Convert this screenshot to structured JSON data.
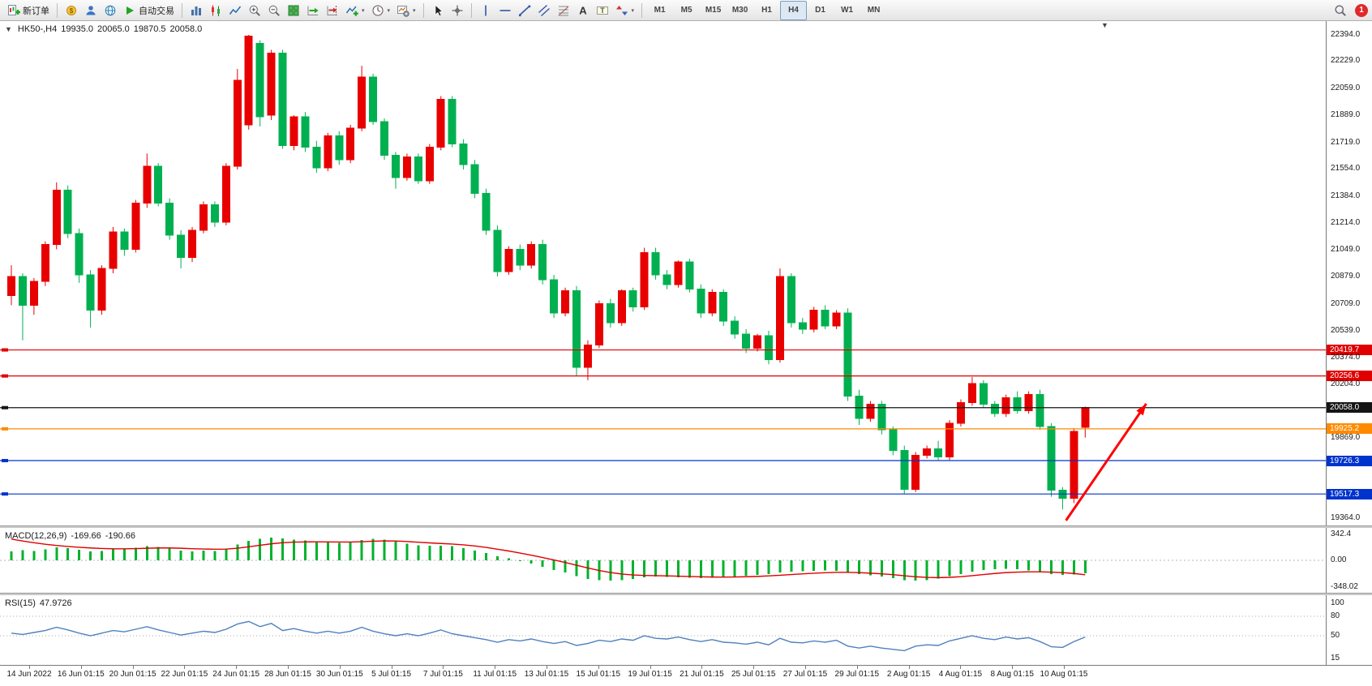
{
  "toolbar": {
    "new_order_label": "新订单",
    "auto_trading_label": "自动交易",
    "timeframes": [
      "M1",
      "M5",
      "M15",
      "M30",
      "H1",
      "H4",
      "D1",
      "W1",
      "MN"
    ],
    "active_timeframe": "H4",
    "notification_badge": "1",
    "items": [
      {
        "icon": "new-order-icon",
        "label": "新订单",
        "name": "new-order-button"
      },
      {
        "sep": true
      },
      {
        "icon": "market-icon",
        "name": "market-button"
      },
      {
        "icon": "community-icon",
        "name": "community-button"
      },
      {
        "icon": "website-icon",
        "name": "website-button"
      },
      {
        "icon": "auto-trading-icon",
        "label": "自动交易",
        "name": "auto-trading-button"
      },
      {
        "sep": true
      },
      {
        "icon": "bar-chart-icon",
        "name": "bar-chart-mode-button"
      },
      {
        "icon": "candlestick-icon",
        "name": "candlestick-mode-button"
      },
      {
        "icon": "line-chart-icon",
        "name": "line-chart-mode-button"
      },
      {
        "icon": "zoom-in-icon",
        "name": "zoom-in-button"
      },
      {
        "icon": "zoom-out-icon",
        "name": "zoom-out-button"
      },
      {
        "icon": "tile-windows-icon",
        "name": "tile-windows-button"
      },
      {
        "icon": "auto-scroll-icon",
        "name": "auto-scroll-button"
      },
      {
        "icon": "chart-shift-icon",
        "name": "chart-shift-button"
      },
      {
        "icon": "indicators-icon",
        "name": "indicators-button",
        "dropdown": true
      },
      {
        "icon": "periods-icon",
        "name": "periods-button",
        "dropdown": true
      },
      {
        "icon": "templates-icon",
        "name": "templates-button",
        "dropdown": true
      },
      {
        "sep": true
      },
      {
        "icon": "cursor-icon",
        "name": "cursor-button"
      },
      {
        "icon": "crosshair-icon",
        "name": "crosshair-button"
      },
      {
        "sep": true
      },
      {
        "icon": "vertical-line-icon",
        "name": "vertical-line-button"
      },
      {
        "icon": "horizontal-line-icon",
        "name": "horizontal-line-button"
      },
      {
        "icon": "trendline-icon",
        "name": "trendline-button"
      },
      {
        "icon": "channel-icon",
        "name": "equidistant-channel-button"
      },
      {
        "icon": "fibonacci-icon",
        "name": "fibonacci-button"
      },
      {
        "icon": "text-icon",
        "name": "text-button"
      },
      {
        "icon": "label-icon",
        "name": "text-label-button"
      },
      {
        "icon": "arrows-icon",
        "name": "arrows-button",
        "dropdown": true
      },
      {
        "sep": true
      }
    ]
  },
  "chart": {
    "symbol_period": "HK50-,H4",
    "open": "19935.0",
    "high": "20065.0",
    "low": "19870.5",
    "close": "20058.0"
  },
  "chart_data": {
    "type": "candlestick",
    "symbol": "HK50-",
    "timeframe": "H4",
    "bull_color": "#e80000",
    "bear_color": "#00b050",
    "view": {
      "price_range": [
        19320,
        22480
      ]
    },
    "price_axis_ticks": [
      "22394.0",
      "22229.0",
      "22059.0",
      "21889.0",
      "21719.0",
      "21554.0",
      "21384.0",
      "21214.0",
      "21049.0",
      "20879.0",
      "20709.0",
      "20539.0",
      "20374.0",
      "20204.0",
      "19869.0",
      "19364.0"
    ],
    "price_levels": [
      {
        "label": "20419.7",
        "color": "#e00000",
        "name": "resistance-line-1"
      },
      {
        "label": "20256.6",
        "color": "#e00000",
        "name": "resistance-line-2"
      },
      {
        "label": "20058.0",
        "color": "#151515",
        "name": "current-price-line"
      },
      {
        "label": "19925.2",
        "color": "#ff8a00",
        "name": "support-line-1"
      },
      {
        "label": "19726.3",
        "color": "#0033cc",
        "name": "support-line-2"
      },
      {
        "label": "19517.3",
        "color": "#0033cc",
        "name": "support-line-3"
      }
    ],
    "candles": [
      [
        20760,
        20950,
        20700,
        20880
      ],
      [
        20880,
        20900,
        20480,
        20700
      ],
      [
        20700,
        20870,
        20640,
        20850
      ],
      [
        20850,
        21100,
        20820,
        21080
      ],
      [
        21080,
        21470,
        21050,
        21420
      ],
      [
        21420,
        21450,
        21120,
        21150
      ],
      [
        21150,
        21180,
        20840,
        20890
      ],
      [
        20890,
        20920,
        20560,
        20670
      ],
      [
        20670,
        20950,
        20640,
        20930
      ],
      [
        20930,
        21190,
        20900,
        21160
      ],
      [
        21160,
        21180,
        21010,
        21050
      ],
      [
        21050,
        21360,
        21030,
        21340
      ],
      [
        21340,
        21650,
        21310,
        21570
      ],
      [
        21570,
        21590,
        21320,
        21340
      ],
      [
        21340,
        21370,
        21110,
        21140
      ],
      [
        21140,
        21170,
        20930,
        21000
      ],
      [
        21000,
        21190,
        20970,
        21170
      ],
      [
        21170,
        21350,
        21150,
        21330
      ],
      [
        21330,
        21350,
        21190,
        21220
      ],
      [
        21220,
        21590,
        21200,
        21570
      ],
      [
        21570,
        22180,
        21550,
        22110
      ],
      [
        21830,
        22394,
        21800,
        22385
      ],
      [
        22340,
        22360,
        21820,
        21880
      ],
      [
        21890,
        22300,
        21860,
        22280
      ],
      [
        22280,
        22300,
        21680,
        21700
      ],
      [
        21700,
        21890,
        21670,
        21880
      ],
      [
        21880,
        21910,
        21660,
        21690
      ],
      [
        21690,
        21730,
        21530,
        21560
      ],
      [
        21560,
        21780,
        21540,
        21760
      ],
      [
        21760,
        21790,
        21580,
        21610
      ],
      [
        21610,
        21830,
        21590,
        21810
      ],
      [
        21810,
        22200,
        21790,
        22130
      ],
      [
        22130,
        22150,
        21830,
        21850
      ],
      [
        21850,
        21870,
        21610,
        21640
      ],
      [
        21640,
        21660,
        21430,
        21500
      ],
      [
        21500,
        21650,
        21480,
        21630
      ],
      [
        21630,
        21650,
        21460,
        21480
      ],
      [
        21480,
        21710,
        21460,
        21690
      ],
      [
        21690,
        22010,
        21670,
        21990
      ],
      [
        21990,
        22010,
        21690,
        21710
      ],
      [
        21710,
        21740,
        21550,
        21580
      ],
      [
        21580,
        21610,
        21370,
        21400
      ],
      [
        21400,
        21430,
        21140,
        21170
      ],
      [
        21170,
        21200,
        20880,
        20910
      ],
      [
        20910,
        21070,
        20890,
        21050
      ],
      [
        21050,
        21080,
        20920,
        20950
      ],
      [
        20950,
        21100,
        20930,
        21080
      ],
      [
        21080,
        21110,
        20830,
        20860
      ],
      [
        20860,
        20890,
        20620,
        20650
      ],
      [
        20650,
        20810,
        20630,
        20790
      ],
      [
        20790,
        20820,
        20260,
        20310
      ],
      [
        20310,
        20480,
        20230,
        20450
      ],
      [
        20450,
        20730,
        20430,
        20710
      ],
      [
        20710,
        20740,
        20560,
        20590
      ],
      [
        20590,
        20800,
        20570,
        20790
      ],
      [
        20790,
        20810,
        20660,
        20690
      ],
      [
        20690,
        21060,
        20670,
        21030
      ],
      [
        21030,
        21060,
        20860,
        20890
      ],
      [
        20890,
        20920,
        20800,
        20830
      ],
      [
        20830,
        20980,
        20810,
        20970
      ],
      [
        20970,
        20990,
        20780,
        20800
      ],
      [
        20800,
        20830,
        20620,
        20650
      ],
      [
        20650,
        20800,
        20630,
        20780
      ],
      [
        20780,
        20800,
        20570,
        20600
      ],
      [
        20600,
        20630,
        20490,
        20520
      ],
      [
        20520,
        20550,
        20400,
        20430
      ],
      [
        20430,
        20520,
        20410,
        20510
      ],
      [
        20510,
        20540,
        20330,
        20360
      ],
      [
        20360,
        20930,
        20340,
        20880
      ],
      [
        20880,
        20900,
        20560,
        20590
      ],
      [
        20590,
        20620,
        20520,
        20550
      ],
      [
        20550,
        20690,
        20530,
        20670
      ],
      [
        20670,
        20700,
        20550,
        20570
      ],
      [
        20570,
        20670,
        20550,
        20650
      ],
      [
        20650,
        20680,
        20100,
        20130
      ],
      [
        20130,
        20170,
        19950,
        19990
      ],
      [
        19990,
        20100,
        19970,
        20080
      ],
      [
        20080,
        20100,
        19890,
        19920
      ],
      [
        19920,
        19940,
        19760,
        19790
      ],
      [
        19790,
        19820,
        19520,
        19545
      ],
      [
        19545,
        19780,
        19530,
        19760
      ],
      [
        19760,
        19820,
        19740,
        19800
      ],
      [
        19800,
        19850,
        19730,
        19750
      ],
      [
        19750,
        19980,
        19730,
        19960
      ],
      [
        19960,
        20110,
        19940,
        20090
      ],
      [
        20090,
        20250,
        20070,
        20210
      ],
      [
        20210,
        20230,
        20060,
        20080
      ],
      [
        20080,
        20100,
        20000,
        20020
      ],
      [
        20020,
        20140,
        20000,
        20120
      ],
      [
        20120,
        20160,
        20020,
        20040
      ],
      [
        20040,
        20160,
        20020,
        20140
      ],
      [
        20140,
        20170,
        19920,
        19940
      ],
      [
        19940,
        19960,
        19500,
        19540
      ],
      [
        19540,
        19560,
        19420,
        19490
      ],
      [
        19490,
        19930,
        19460,
        19910
      ],
      [
        19935,
        20065,
        19870.5,
        20058
      ]
    ],
    "x_labels": [
      "14 Jun 2022",
      "16 Jun 01:15",
      "20 Jun 01:15",
      "22 Jun 01:15",
      "24 Jun 01:15",
      "28 Jun 01:15",
      "30 Jun 01:15",
      "5 Jul 01:15",
      "7 Jul 01:15",
      "11 Jul 01:15",
      "13 Jul 01:15",
      "15 Jul 01:15",
      "19 Jul 01:15",
      "21 Jul 01:15",
      "25 Jul 01:15",
      "27 Jul 01:15",
      "29 Jul 01:15",
      "2 Aug 01:15",
      "4 Aug 01:15",
      "8 Aug 01:15",
      "10 Aug 01:15"
    ],
    "annotations": [
      {
        "type": "arrow",
        "color": "#ff0000",
        "from": {
          "bar": 93.3,
          "price": 19351
        },
        "to": {
          "bar": 100.4,
          "price": 20083
        }
      }
    ]
  },
  "indicators": {
    "macd": {
      "label": "MACD(12,26,9)",
      "value_main": "-169.66",
      "value_signal": "-190.66",
      "scale": [
        "342.4",
        "0.00",
        "-348.02"
      ],
      "scale_range": [
        342.4,
        -348.02
      ],
      "histogram_color": "#00b22d",
      "signal_color": "#e00000",
      "histogram": [
        120,
        135,
        125,
        145,
        170,
        160,
        140,
        115,
        125,
        145,
        155,
        165,
        185,
        175,
        155,
        130,
        120,
        130,
        125,
        155,
        210,
        255,
        285,
        300,
        290,
        275,
        260,
        245,
        235,
        230,
        240,
        265,
        285,
        275,
        250,
        220,
        200,
        190,
        195,
        185,
        160,
        130,
        95,
        55,
        25,
        -10,
        -45,
        -85,
        -130,
        -160,
        -210,
        -245,
        -265,
        -270,
        -260,
        -245,
        -225,
        -215,
        -220,
        -225,
        -230,
        -235,
        -230,
        -225,
        -215,
        -205,
        -195,
        -180,
        -160,
        -150,
        -145,
        -140,
        -135,
        -140,
        -160,
        -180,
        -200,
        -215,
        -235,
        -260,
        -270,
        -260,
        -240,
        -210,
        -180,
        -150,
        -130,
        -120,
        -115,
        -120,
        -135,
        -155,
        -180,
        -195,
        -185,
        -169.66
      ],
      "signal": [
        280,
        255,
        232,
        212,
        196,
        183,
        172,
        163,
        156,
        152,
        152,
        154,
        159,
        163,
        163,
        159,
        153,
        149,
        146,
        148,
        160,
        178,
        198,
        218,
        232,
        240,
        243,
        244,
        243,
        241,
        241,
        245,
        252,
        256,
        255,
        248,
        239,
        230,
        222,
        215,
        204,
        189,
        170,
        147,
        123,
        96,
        68,
        37,
        4,
        -29,
        -65,
        -101,
        -134,
        -161,
        -181,
        -194,
        -200,
        -203,
        -206,
        -210,
        -214,
        -218,
        -221,
        -222,
        -220,
        -217,
        -213,
        -206,
        -197,
        -188,
        -179,
        -171,
        -164,
        -159,
        -159,
        -163,
        -170,
        -179,
        -190,
        -204,
        -217,
        -226,
        -229,
        -225,
        -216,
        -203,
        -188,
        -174,
        -162,
        -156,
        -152,
        -152,
        -156,
        -163,
        -174,
        -190.66
      ]
    },
    "rsi": {
      "label": "RSI(15)",
      "value": "47.9726",
      "scale": [
        "100",
        "80",
        "50",
        "15"
      ],
      "levels": [
        80,
        50
      ],
      "line_color": "#4f81bd",
      "values": [
        54,
        52,
        55,
        58,
        63,
        59,
        54,
        50,
        54,
        58,
        56,
        60,
        64,
        59,
        55,
        51,
        54,
        57,
        55,
        60,
        68,
        72,
        64,
        69,
        58,
        61,
        57,
        54,
        57,
        54,
        57,
        63,
        57,
        53,
        50,
        53,
        50,
        54,
        59,
        53,
        50,
        47,
        44,
        40,
        44,
        42,
        45,
        41,
        38,
        41,
        35,
        38,
        43,
        41,
        45,
        43,
        50,
        46,
        45,
        48,
        44,
        41,
        44,
        40,
        39,
        37,
        40,
        36,
        46,
        40,
        39,
        42,
        40,
        43,
        34,
        31,
        34,
        31,
        29,
        27,
        34,
        36,
        35,
        42,
        46,
        50,
        46,
        44,
        48,
        45,
        47,
        41,
        33,
        32,
        41,
        47.97
      ]
    }
  }
}
